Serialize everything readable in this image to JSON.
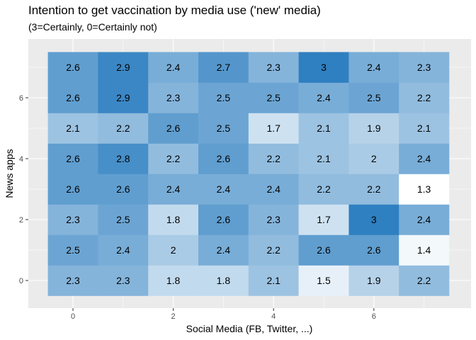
{
  "chart_data": {
    "type": "heatmap",
    "title": "Intention to get vaccination by media use ('new' media)",
    "subtitle": "(3=Certainly, 0=Certainly not)",
    "xlabel": "Social Media (FB, Twitter, ...)",
    "ylabel": "News apps",
    "x": [
      0,
      1,
      2,
      3,
      4,
      5,
      6,
      7
    ],
    "y": [
      0,
      1,
      2,
      3,
      4,
      5,
      6,
      7
    ],
    "x_ticks": [
      0,
      2,
      4,
      6
    ],
    "y_ticks": [
      0,
      2,
      4,
      6
    ],
    "xlim": [
      -0.5,
      7.5
    ],
    "ylim": [
      -0.5,
      7.5
    ],
    "grid": true,
    "legend": "none",
    "color_low": "#ffffff",
    "color_high": "#2f80c1",
    "value_range": [
      1.3,
      3.0
    ],
    "values": [
      [
        2.3,
        2.3,
        1.8,
        1.8,
        2.1,
        1.5,
        1.9,
        2.2
      ],
      [
        2.5,
        2.4,
        2.0,
        2.4,
        2.2,
        2.6,
        2.6,
        1.4
      ],
      [
        2.3,
        2.5,
        1.8,
        2.6,
        2.3,
        1.7,
        3.0,
        2.4
      ],
      [
        2.6,
        2.6,
        2.4,
        2.4,
        2.4,
        2.2,
        2.2,
        1.3
      ],
      [
        2.6,
        2.8,
        2.2,
        2.6,
        2.2,
        2.1,
        2.0,
        2.4
      ],
      [
        2.1,
        2.2,
        2.6,
        2.5,
        1.7,
        2.1,
        1.9,
        2.1
      ],
      [
        2.6,
        2.9,
        2.3,
        2.5,
        2.5,
        2.4,
        2.5,
        2.2
      ],
      [
        2.6,
        2.9,
        2.4,
        2.7,
        2.3,
        3.0,
        2.4,
        2.3
      ]
    ],
    "labels": [
      [
        "2.3",
        "2.3",
        "1.8",
        "1.8",
        "2.1",
        "1.5",
        "1.9",
        "2.2"
      ],
      [
        "2.5",
        "2.4",
        "2",
        "2.4",
        "2.2",
        "2.6",
        "2.6",
        "1.4"
      ],
      [
        "2.3",
        "2.5",
        "1.8",
        "2.6",
        "2.3",
        "1.7",
        "3",
        "2.4"
      ],
      [
        "2.6",
        "2.6",
        "2.4",
        "2.4",
        "2.4",
        "2.2",
        "2.2",
        "1.3"
      ],
      [
        "2.6",
        "2.8",
        "2.2",
        "2.6",
        "2.2",
        "2.1",
        "2",
        "2.4"
      ],
      [
        "2.1",
        "2.2",
        "2.6",
        "2.5",
        "1.7",
        "2.1",
        "1.9",
        "2.1"
      ],
      [
        "2.6",
        "2.9",
        "2.3",
        "2.5",
        "2.5",
        "2.4",
        "2.5",
        "2.2"
      ],
      [
        "2.6",
        "2.9",
        "2.4",
        "2.7",
        "2.3",
        "3",
        "2.4",
        "2.3"
      ]
    ]
  }
}
